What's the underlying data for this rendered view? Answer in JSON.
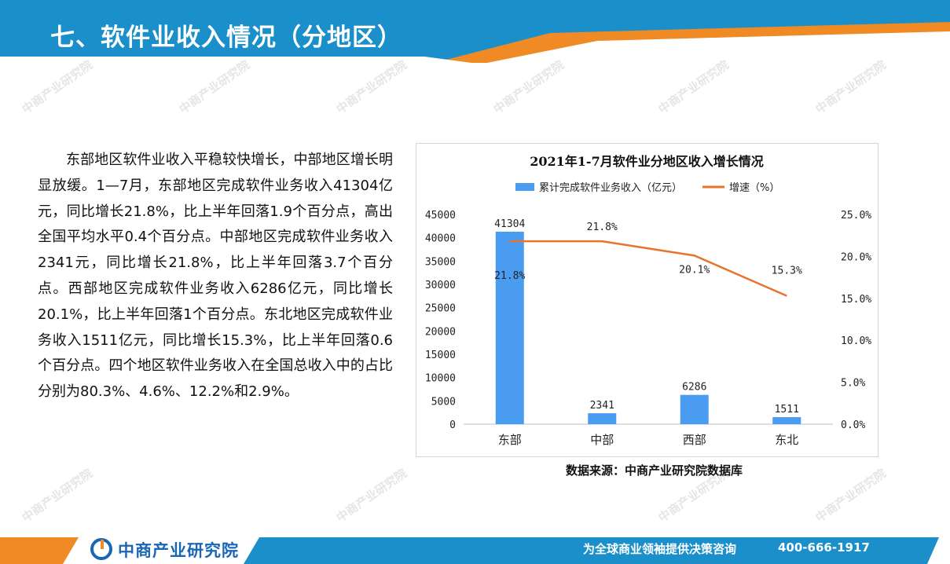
{
  "header": {
    "title": "七、软件业收入情况（分地区）"
  },
  "body_text": "东部地区软件业收入平稳较快增长，中部地区增长明显放缓。1—7月，东部地区完成软件业务收入41304亿元，同比增长21.8%，比上半年回落1.9个百分点，高出全国平均水平0.4个百分点。中部地区完成软件业务收入2341元，同比增长21.8%，比上半年回落3.7个百分点。西部地区完成软件业务收入6286亿元，同比增长20.1%，比上半年回落1个百分点。东北地区完成软件业务收入1511亿元，同比增长15.3%，比上半年回落0.6个百分点。四个地区软件业务收入在全国总收入中的占比分别为80.3%、4.6%、12.2%和2.9%。",
  "chart_data": {
    "type": "bar",
    "title": "2021年1-7月软件业分地区收入增长情况",
    "categories": [
      "东部",
      "中部",
      "西部",
      "东北"
    ],
    "series": [
      {
        "name": "累计完成软件业务收入（亿元）",
        "type": "bar",
        "axis": "left",
        "values": [
          41304,
          2341,
          6286,
          1511
        ],
        "labels": [
          "41304",
          "2341",
          "6286",
          "1511"
        ]
      },
      {
        "name": "增速（%）",
        "type": "line",
        "axis": "right",
        "values": [
          21.8,
          21.8,
          20.1,
          15.3
        ],
        "labels": [
          "21.8%",
          "21.8%",
          "20.1%",
          "15.3%"
        ]
      }
    ],
    "y_left": {
      "min": 0,
      "max": 45000,
      "ticks": [
        "0",
        "5000",
        "10000",
        "15000",
        "20000",
        "25000",
        "30000",
        "35000",
        "40000",
        "45000"
      ]
    },
    "y_right": {
      "min": 0,
      "max": 25,
      "ticks": [
        "0.0%",
        "5.0%",
        "10.0%",
        "15.0%",
        "20.0%",
        "25.0%"
      ]
    },
    "legend_position": "top",
    "grid": false,
    "colors": {
      "bar": "#4a9cf0",
      "line": "#e8732c"
    }
  },
  "source": "数据来源：中商产业研究院数据库",
  "footer": {
    "brand": "中商产业研究院",
    "slogan": "为全球商业领袖提供决策咨询",
    "phone": "400-666-1917"
  },
  "watermark": {
    "text": "中商产业研究院"
  },
  "colors": {
    "header_blue": "#1b8fc9",
    "accent_orange": "#f08a24"
  }
}
